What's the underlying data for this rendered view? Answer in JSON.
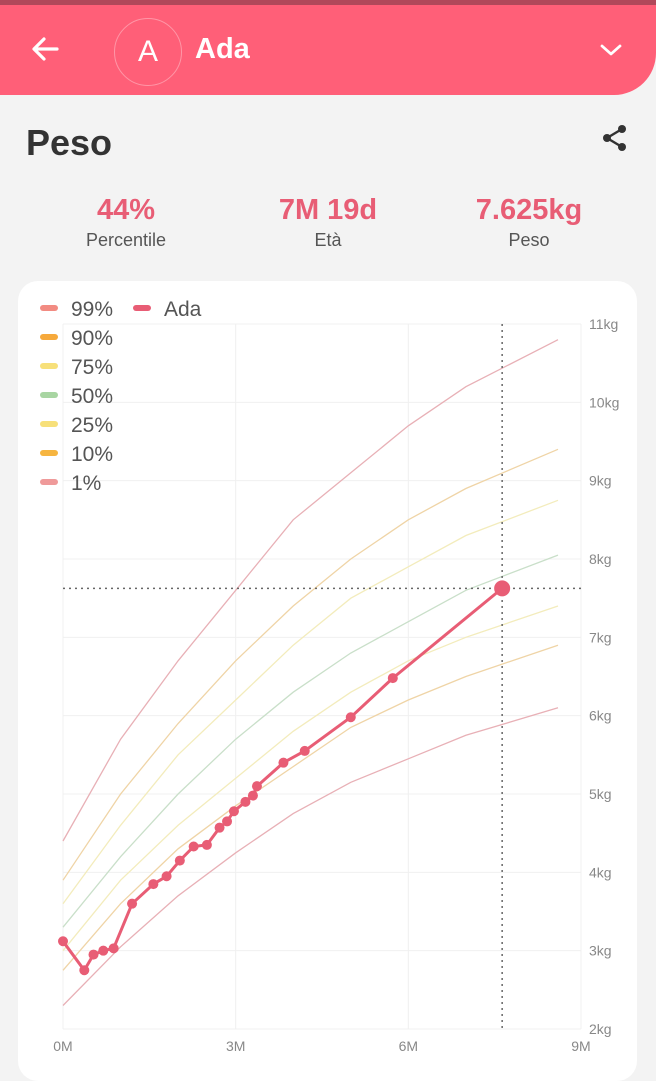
{
  "header": {
    "avatar_letter": "A",
    "child_name": "Ada",
    "bg_color": "#ff5f78"
  },
  "page": {
    "title": "Peso"
  },
  "stats": [
    {
      "value": "44%",
      "label": "Percentile"
    },
    {
      "value": "7M 19d",
      "label": "Età"
    },
    {
      "value": "7.625kg",
      "label": "Peso"
    }
  ],
  "icons": {
    "back": "arrow-left-icon",
    "dropdown": "chevron-down-icon",
    "share": "share-icon"
  },
  "chart_data": {
    "type": "line",
    "x_unit": "months",
    "xlim": [
      0,
      9
    ],
    "ylim": [
      2,
      11
    ],
    "x_ticks": [
      "0M",
      "3M",
      "6M",
      "9M"
    ],
    "y_ticks": [
      "2kg",
      "3kg",
      "4kg",
      "5kg",
      "6kg",
      "7kg",
      "8kg",
      "9kg",
      "10kg",
      "11kg"
    ],
    "legend": [
      {
        "name": "99%",
        "color": "#f28b82"
      },
      {
        "name": "90%",
        "color": "#f6a93b"
      },
      {
        "name": "75%",
        "color": "#f7e07a"
      },
      {
        "name": "50%",
        "color": "#a8d5a2"
      },
      {
        "name": "25%",
        "color": "#f7e07a"
      },
      {
        "name": "10%",
        "color": "#f6b540"
      },
      {
        "name": "1%",
        "color": "#ef9a9a"
      },
      {
        "name": "Ada",
        "color": "#e85d75"
      }
    ],
    "percentile_series": [
      {
        "name": "99%",
        "color": "#e8b0b6",
        "x": [
          0,
          1,
          2,
          3,
          4,
          5,
          6,
          7,
          8.6
        ],
        "y": [
          4.4,
          5.7,
          6.7,
          7.6,
          8.5,
          9.1,
          9.7,
          10.2,
          10.8
        ]
      },
      {
        "name": "90%",
        "color": "#efd4a6",
        "x": [
          0,
          1,
          2,
          3,
          4,
          5,
          6,
          7,
          8.6
        ],
        "y": [
          3.9,
          5.0,
          5.9,
          6.7,
          7.4,
          8.0,
          8.5,
          8.9,
          9.4
        ]
      },
      {
        "name": "75%",
        "color": "#f3ecbc",
        "x": [
          0,
          1,
          2,
          3,
          4,
          5,
          6,
          7,
          8.6
        ],
        "y": [
          3.6,
          4.6,
          5.5,
          6.2,
          6.9,
          7.5,
          7.9,
          8.3,
          8.75
        ]
      },
      {
        "name": "50%",
        "color": "#c9dfc9",
        "x": [
          0,
          1,
          2,
          3,
          4,
          5,
          6,
          7,
          8.6
        ],
        "y": [
          3.3,
          4.2,
          5.0,
          5.7,
          6.3,
          6.8,
          7.2,
          7.6,
          8.05
        ]
      },
      {
        "name": "25%",
        "color": "#f3ecbc",
        "x": [
          0,
          1,
          2,
          3,
          4,
          5,
          6,
          7,
          8.6
        ],
        "y": [
          3.0,
          3.9,
          4.6,
          5.2,
          5.8,
          6.3,
          6.7,
          7.0,
          7.4
        ]
      },
      {
        "name": "10%",
        "color": "#efd4a6",
        "x": [
          0,
          1,
          2,
          3,
          4,
          5,
          6,
          7,
          8.6
        ],
        "y": [
          2.75,
          3.6,
          4.3,
          4.85,
          5.35,
          5.85,
          6.2,
          6.5,
          6.9
        ]
      },
      {
        "name": "1%",
        "color": "#e8b0b6",
        "x": [
          0,
          1,
          2,
          3,
          4,
          5,
          6,
          7,
          8.6
        ],
        "y": [
          2.3,
          3.05,
          3.7,
          4.25,
          4.75,
          5.15,
          5.45,
          5.75,
          6.1
        ]
      }
    ],
    "child_series": {
      "name": "Ada",
      "color": "#e85d75",
      "x": [
        0,
        0.37,
        0.53,
        0.7,
        0.88,
        1.2,
        1.57,
        1.8,
        2.03,
        2.27,
        2.5,
        2.72,
        2.85,
        2.97,
        3.17,
        3.3,
        3.37,
        3.83,
        4.2,
        5.0,
        5.73,
        7.63
      ],
      "y": [
        3.12,
        2.75,
        2.95,
        3.0,
        3.03,
        3.6,
        3.85,
        3.95,
        4.15,
        4.33,
        4.35,
        4.57,
        4.65,
        4.78,
        4.9,
        4.98,
        5.1,
        5.4,
        5.55,
        5.98,
        6.48,
        7.625
      ]
    },
    "highlight": {
      "x": 7.63,
      "y": 7.625
    },
    "grid": true
  }
}
